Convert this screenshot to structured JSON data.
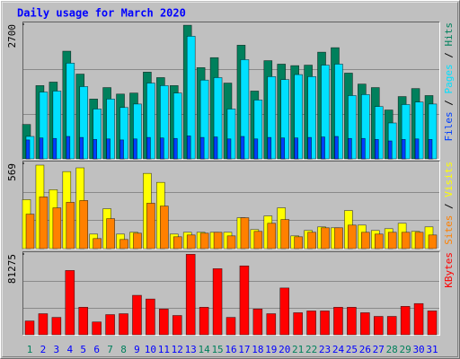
{
  "legend_separator": "/",
  "chart_data": [
    {
      "type": "bar",
      "title": "Daily usage for March 2020",
      "ylim": [
        0,
        2700
      ],
      "yticks": [
        2700
      ],
      "grid_values": [
        900,
        1800
      ],
      "series": [
        {
          "name": "Hits",
          "color": "#00805c",
          "values": [
            690,
            1470,
            1540,
            2160,
            1700,
            1200,
            1430,
            1300,
            1320,
            1740,
            1630,
            1470,
            2680,
            1830,
            2030,
            1520,
            2280,
            1360,
            1970,
            1900,
            1870,
            1880,
            2140,
            2230,
            1720,
            1500,
            1430,
            980,
            1250,
            1410,
            1270
          ]
        },
        {
          "name": "Pages",
          "color": "#00e0ff",
          "values": [
            450,
            1340,
            1360,
            1920,
            1450,
            1000,
            1200,
            1030,
            1100,
            1520,
            1470,
            1320,
            2460,
            1580,
            1630,
            1000,
            1990,
            1180,
            1650,
            1590,
            1690,
            1650,
            1880,
            1900,
            1270,
            1290,
            1050,
            720,
            1090,
            1140,
            1100
          ]
        },
        {
          "name": "Files",
          "color": "#0040ff",
          "values": [
            380,
            420,
            410,
            450,
            430,
            390,
            400,
            380,
            400,
            430,
            420,
            410,
            460,
            430,
            440,
            400,
            450,
            400,
            430,
            420,
            420,
            430,
            440,
            450,
            410,
            410,
            390,
            360,
            390,
            400,
            390
          ]
        }
      ]
    },
    {
      "type": "bar",
      "ylim": [
        0,
        569
      ],
      "yticks": [
        569
      ],
      "grid_values": [
        190,
        379
      ],
      "series": [
        {
          "name": "Visits",
          "color": "#ffff00",
          "values": [
            327,
            557,
            393,
            514,
            539,
            97,
            266,
            97,
            109,
            502,
            442,
            97,
            109,
            109,
            109,
            109,
            206,
            127,
            218,
            272,
            85,
            121,
            145,
            139,
            254,
            157,
            121,
            133,
            169,
            115,
            145
          ]
        },
        {
          "name": "Sites",
          "color": "#ff8000",
          "values": [
            230,
            345,
            272,
            309,
            321,
            67,
            200,
            61,
            103,
            303,
            284,
            79,
            91,
            103,
            109,
            85,
            206,
            115,
            169,
            194,
            79,
            109,
            139,
            139,
            157,
            109,
            97,
            109,
            109,
            109,
            91
          ]
        }
      ]
    },
    {
      "type": "bar",
      "ylim": [
        0,
        81275
      ],
      "yticks": [
        81275
      ],
      "grid_values": [
        27092,
        54183
      ],
      "categories": [
        "1",
        "2",
        "3",
        "4",
        "5",
        "6",
        "7",
        "8",
        "9",
        "10",
        "11",
        "12",
        "13",
        "14",
        "15",
        "16",
        "17",
        "18",
        "19",
        "20",
        "21",
        "22",
        "23",
        "24",
        "25",
        "26",
        "27",
        "28",
        "29",
        "30",
        "31"
      ],
      "weekend_indices": [
        0,
        6,
        7,
        13,
        14,
        20,
        21,
        27,
        28
      ],
      "weekday_label_color": "#0000ff",
      "weekend_label_color": "#00805c",
      "series": [
        {
          "name": "KBytes",
          "color": "#ff0000",
          "values": [
            13900,
            21200,
            17500,
            64700,
            27700,
            12900,
            20300,
            21200,
            39700,
            36000,
            25900,
            19400,
            81000,
            27700,
            66500,
            17500,
            69300,
            25900,
            21200,
            47100,
            22200,
            24000,
            24000,
            27700,
            27700,
            22200,
            18500,
            18500,
            28600,
            31400,
            24000
          ]
        }
      ]
    }
  ]
}
